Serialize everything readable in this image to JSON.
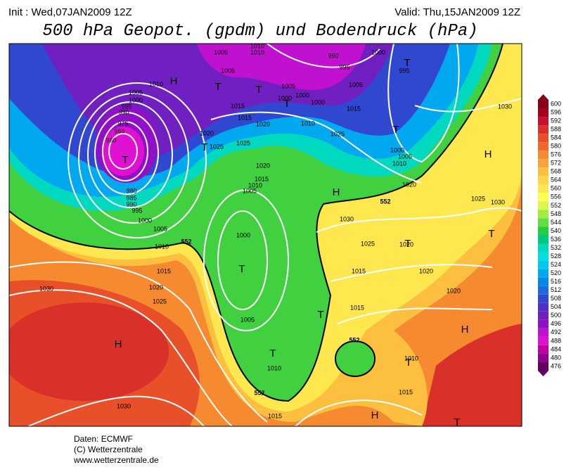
{
  "header": {
    "init": "Init : Wed,07JAN2009 12Z",
    "valid": "Valid: Thu,15JAN2009 12Z",
    "title": "500 hPa Geopot. (gpdm) und Bodendruck (hPa)"
  },
  "colorbar": {
    "levels": [
      600,
      596,
      592,
      588,
      584,
      580,
      576,
      572,
      568,
      564,
      560,
      556,
      552,
      548,
      544,
      540,
      536,
      532,
      528,
      524,
      520,
      516,
      512,
      508,
      504,
      500,
      496,
      492,
      488,
      484,
      480,
      476
    ],
    "colors": [
      "#8b0016",
      "#a5001e",
      "#c8102e",
      "#d9302a",
      "#e8502a",
      "#ef6a2a",
      "#f58a30",
      "#f9a33a",
      "#fcbf3f",
      "#ffd54a",
      "#ffe84f",
      "#ffff50",
      "#d8f84a",
      "#a0ec40",
      "#60e040",
      "#20d040",
      "#00c880",
      "#00d8c0",
      "#00e0e0",
      "#00c8f0",
      "#00a8f0",
      "#0088e8",
      "#2068e0",
      "#3048d0",
      "#5030c8",
      "#7020c0",
      "#9010c8",
      "#c010d0",
      "#e010d0",
      "#c000a0",
      "#900090",
      "#600060"
    ]
  },
  "map": {
    "pressure_labels": [
      "1005",
      "1010",
      "1010",
      "990",
      "995",
      "1000",
      "995",
      "1005",
      "1010",
      "1005",
      "1000",
      "995",
      "990",
      "975",
      "965",
      "960",
      "1005",
      "1000",
      "1000",
      "1000",
      "1005",
      "1015",
      "1015",
      "1010",
      "1020",
      "1015",
      "1020",
      "1025",
      "1025",
      "1025",
      "1030",
      "1000",
      "1005",
      "1010",
      "1020",
      "1015",
      "1010",
      "1005",
      "1020",
      "1025",
      "1030",
      "980",
      "985",
      "990",
      "995",
      "1000",
      "1005",
      "1010",
      "1000",
      "1030",
      "1025",
      "1020",
      "1015",
      "1020",
      "1015",
      "1020",
      "1025",
      "1030",
      "1020",
      "1005",
      "1015",
      "1010",
      "1010",
      "1015",
      "1030",
      "1015"
    ],
    "contour_labels": [
      "552",
      "552",
      "552",
      "552"
    ],
    "centers": [
      "H",
      "T",
      "T",
      "T",
      "T",
      "T",
      "T",
      "T",
      "H",
      "H",
      "T",
      "T",
      "T",
      "T",
      "H",
      "H",
      "T",
      "T",
      "H",
      "T"
    ]
  },
  "footer": [
    "Daten: ECMWF",
    "(C) Wetterzentrale",
    "www.wetterzentrale.de"
  ]
}
